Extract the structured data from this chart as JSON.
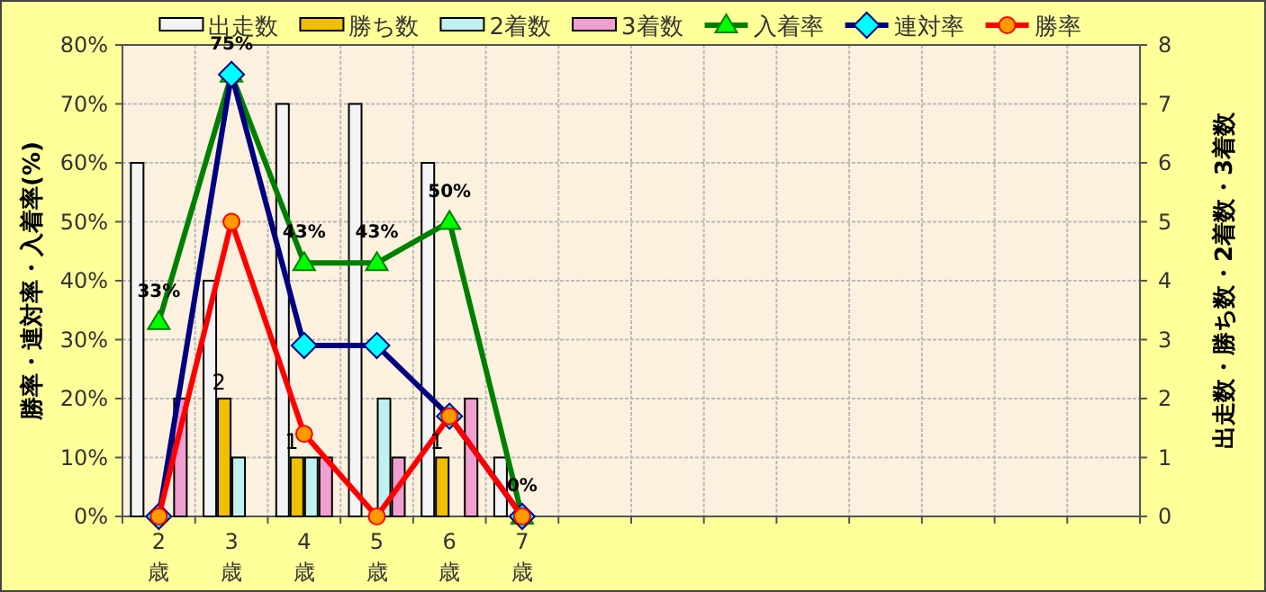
{
  "chart_data": {
    "type": "bar",
    "categories": [
      "2歳",
      "3歳",
      "4歳",
      "5歳",
      "6歳",
      "7歳",
      null,
      null,
      null,
      null,
      null,
      null,
      null,
      null
    ],
    "series": [
      {
        "name": "出走数",
        "axis": "y2",
        "color": "#f4f4f4",
        "values": [
          6,
          4,
          7,
          7,
          6,
          1,
          null,
          null,
          null,
          null,
          null,
          null,
          null,
          null
        ]
      },
      {
        "name": "勝ち数",
        "axis": "y2",
        "color": "#f0c000",
        "values": [
          0,
          2,
          1,
          0,
          1,
          0,
          null,
          null,
          null,
          null,
          null,
          null,
          null,
          null
        ],
        "value_labels": [
          null,
          "2",
          "1",
          null,
          "1",
          null,
          null,
          null,
          null,
          null,
          null,
          null,
          null,
          null
        ]
      },
      {
        "name": "2着数",
        "axis": "y2",
        "color": "#c0f0f0",
        "values": [
          0,
          1,
          1,
          2,
          0,
          0,
          null,
          null,
          null,
          null,
          null,
          null,
          null,
          null
        ]
      },
      {
        "name": "3着数",
        "axis": "y2",
        "color": "#f0a0d0",
        "values": [
          2,
          0,
          1,
          1,
          2,
          0,
          null,
          null,
          null,
          null,
          null,
          null,
          null,
          null
        ]
      },
      {
        "name": "入着率",
        "type": "line",
        "color": "#008000",
        "marker": "triangle",
        "values": [
          33,
          75,
          43,
          43,
          50,
          0,
          null,
          null,
          null,
          null,
          null,
          null,
          null,
          null
        ],
        "value_labels": [
          "33%",
          "75%",
          "43%",
          "43%",
          "50%",
          "0%",
          null,
          null,
          null,
          null,
          null,
          null,
          null,
          null
        ]
      },
      {
        "name": "連対率",
        "type": "line",
        "color": "#000080",
        "marker": "diamond",
        "values": [
          0,
          75,
          29,
          29,
          17,
          0,
          null,
          null,
          null,
          null,
          null,
          null,
          null,
          null
        ]
      },
      {
        "name": "勝率",
        "type": "line",
        "color": "#ff0000",
        "marker": "circle",
        "values": [
          0,
          50,
          14,
          0,
          17,
          0,
          null,
          null,
          null,
          null,
          null,
          null,
          null,
          null
        ]
      }
    ],
    "ylabel": "勝率・連対率・入着率(%)",
    "y2label": "出走数・勝ち数・2着数・3着数",
    "ylim": [
      0,
      80
    ],
    "yticks": [
      {
        "value": 0,
        "label": "0%"
      },
      {
        "value": 10,
        "label": "10%"
      },
      {
        "value": 20,
        "label": "20%"
      },
      {
        "value": 30,
        "label": "30%"
      },
      {
        "value": 40,
        "label": "40%"
      },
      {
        "value": 50,
        "label": "50%"
      },
      {
        "value": 60,
        "label": "60%"
      },
      {
        "value": 70,
        "label": "70%"
      },
      {
        "value": 80,
        "label": "80%"
      }
    ],
    "y2lim": [
      0,
      8
    ],
    "y2ticks": [
      0,
      1,
      2,
      3,
      4,
      5,
      6,
      7,
      8
    ],
    "grid": true,
    "legend": "top"
  }
}
